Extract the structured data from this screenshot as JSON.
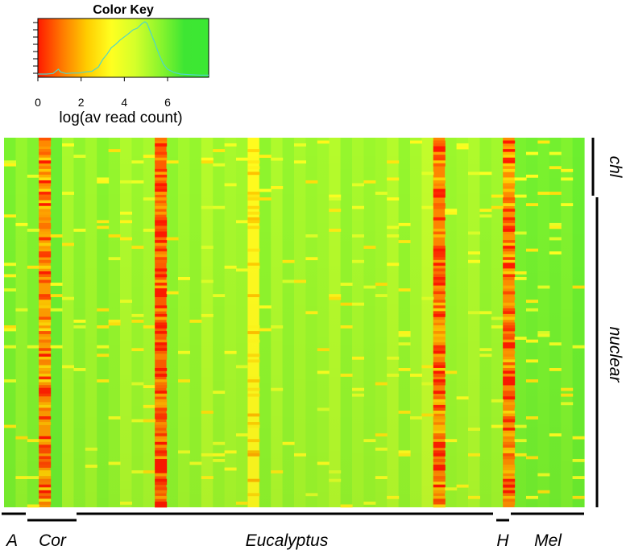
{
  "chart_data": {
    "type": "heatmap",
    "color_key": {
      "title": "Color Key",
      "xlabel": "log(av read count)",
      "ticks": [
        "0",
        "2",
        "4",
        "6"
      ],
      "tick_values": [
        0,
        2,
        4,
        6
      ],
      "range": [
        0,
        7.9
      ],
      "colors": [
        "#ff1a00",
        "#ff7a00",
        "#ffcc00",
        "#ffff20",
        "#d4ff2a",
        "#8cf52d",
        "#3ee633",
        "#3ce833"
      ],
      "histogram_color": "#4fd6c8",
      "histogram": [
        [
          0.0,
          0.03
        ],
        [
          0.4,
          0.03
        ],
        [
          0.7,
          0.04
        ],
        [
          0.85,
          0.09
        ],
        [
          0.95,
          0.12
        ],
        [
          1.05,
          0.07
        ],
        [
          1.3,
          0.04
        ],
        [
          1.6,
          0.05
        ],
        [
          1.9,
          0.05
        ],
        [
          2.2,
          0.07
        ],
        [
          2.5,
          0.08
        ],
        [
          2.8,
          0.16
        ],
        [
          3.0,
          0.3
        ],
        [
          3.2,
          0.4
        ],
        [
          3.4,
          0.52
        ],
        [
          3.6,
          0.58
        ],
        [
          3.8,
          0.66
        ],
        [
          4.0,
          0.72
        ],
        [
          4.2,
          0.78
        ],
        [
          4.4,
          0.85
        ],
        [
          4.6,
          0.88
        ],
        [
          4.8,
          0.96
        ],
        [
          4.95,
          1.0
        ],
        [
          5.05,
          0.97
        ],
        [
          5.2,
          0.82
        ],
        [
          5.4,
          0.62
        ],
        [
          5.6,
          0.4
        ],
        [
          5.8,
          0.22
        ],
        [
          6.0,
          0.12
        ],
        [
          6.3,
          0.06
        ],
        [
          6.6,
          0.03
        ],
        [
          7.0,
          0.02
        ],
        [
          7.5,
          0.01
        ],
        [
          7.9,
          0.01
        ]
      ]
    },
    "column_groups": [
      {
        "label": "A",
        "start": 0,
        "end": 2
      },
      {
        "label": "Cor",
        "start": 2,
        "end": 6
      },
      {
        "label": "Eucalyptus",
        "start": 6,
        "end": 43
      },
      {
        "label": "H",
        "start": 43,
        "end": 44
      },
      {
        "label": "Mel",
        "start": 44,
        "end": 50
      }
    ],
    "row_groups": [
      {
        "label": "chl",
        "start": 0,
        "end": 0.09
      },
      {
        "label": "nuclear",
        "start": 0.09,
        "end": 1.0
      }
    ],
    "n_columns": 50,
    "n_rows": 130,
    "column_levels": [
      5.9,
      5.5,
      5.8,
      1.6,
      6.1,
      5.2,
      5.6,
      5.3,
      5.7,
      5.5,
      5.1,
      5.4,
      5.2,
      0.8,
      5.6,
      5.3,
      5.5,
      5.0,
      5.4,
      5.2,
      5.3,
      3.3,
      5.6,
      5.1,
      5.5,
      5.2,
      5.4,
      5.3,
      5.0,
      5.5,
      5.2,
      5.4,
      5.3,
      5.0,
      5.5,
      5.2,
      4.8,
      1.3,
      5.4,
      5.3,
      5.1,
      5.5,
      5.3,
      1.4,
      5.9,
      6.0,
      5.9,
      6.0,
      5.8,
      6.1
    ]
  }
}
